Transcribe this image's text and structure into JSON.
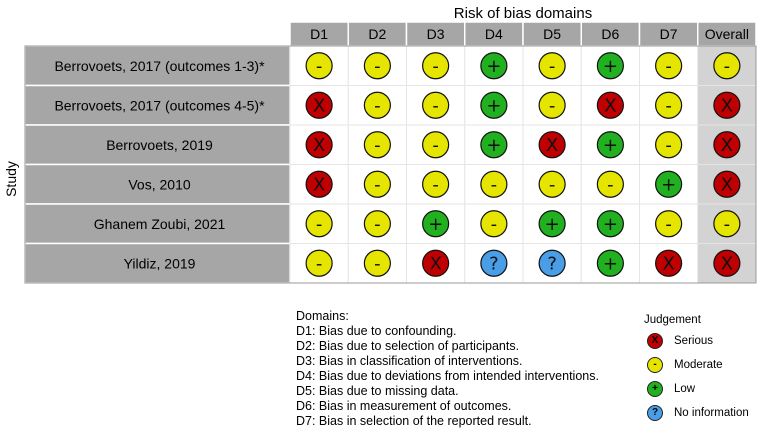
{
  "chart_data": {
    "type": "table",
    "title": "Risk of bias domains",
    "ylabel": "Study",
    "columns": [
      "D1",
      "D2",
      "D3",
      "D4",
      "D5",
      "D6",
      "D7",
      "Overall"
    ],
    "studies": [
      "Berrovoets, 2017 (outcomes 1-3)*",
      "Berrovoets, 2017 (outcomes 4-5)*",
      "Berrovoets, 2019",
      "Vos, 2010",
      "Ghanem Zoubi, 2021",
      "Yildiz, 2019"
    ],
    "judgements": [
      [
        "Moderate",
        "Moderate",
        "Moderate",
        "Low",
        "Moderate",
        "Low",
        "Moderate",
        "Moderate"
      ],
      [
        "Serious",
        "Moderate",
        "Moderate",
        "Low",
        "Moderate",
        "Serious",
        "Moderate",
        "Serious"
      ],
      [
        "Serious",
        "Moderate",
        "Moderate",
        "Low",
        "Serious",
        "Low",
        "Moderate",
        "Serious"
      ],
      [
        "Serious",
        "Moderate",
        "Moderate",
        "Moderate",
        "Moderate",
        "Moderate",
        "Low",
        "Serious"
      ],
      [
        "Moderate",
        "Moderate",
        "Low",
        "Moderate",
        "Low",
        "Low",
        "Moderate",
        "Moderate"
      ],
      [
        "Moderate",
        "Moderate",
        "Serious",
        "No information",
        "No information",
        "Low",
        "Serious",
        "Serious"
      ]
    ],
    "levels": {
      "Serious": {
        "symbol": "X",
        "color": "#c00000"
      },
      "Moderate": {
        "symbol": "-",
        "color": "#e5e500"
      },
      "Low": {
        "symbol": "+",
        "color": "#20b020"
      },
      "No information": {
        "symbol": "?",
        "color": "#4a9ee8"
      }
    },
    "domains_title": "Domains:",
    "domain_descriptions": [
      "D1: Bias due to confounding.",
      "D2: Bias due to selection of participants.",
      "D3: Bias in classification of interventions.",
      "D4: Bias due to deviations from intended interventions.",
      "D5: Bias due to missing data.",
      "D6: Bias in measurement of outcomes.",
      "D7: Bias in selection of the reported result."
    ],
    "legend_title": "Judgement",
    "legend": [
      "Serious",
      "Moderate",
      "Low",
      "No information"
    ]
  },
  "colors": {
    "study_bg": "#a6a6a6",
    "cell_bg": "#ffffff",
    "overall_bg": "#d3d3d3",
    "header_bg": "#a6a6a6",
    "grid": "#ffffff",
    "border": "#111111"
  }
}
